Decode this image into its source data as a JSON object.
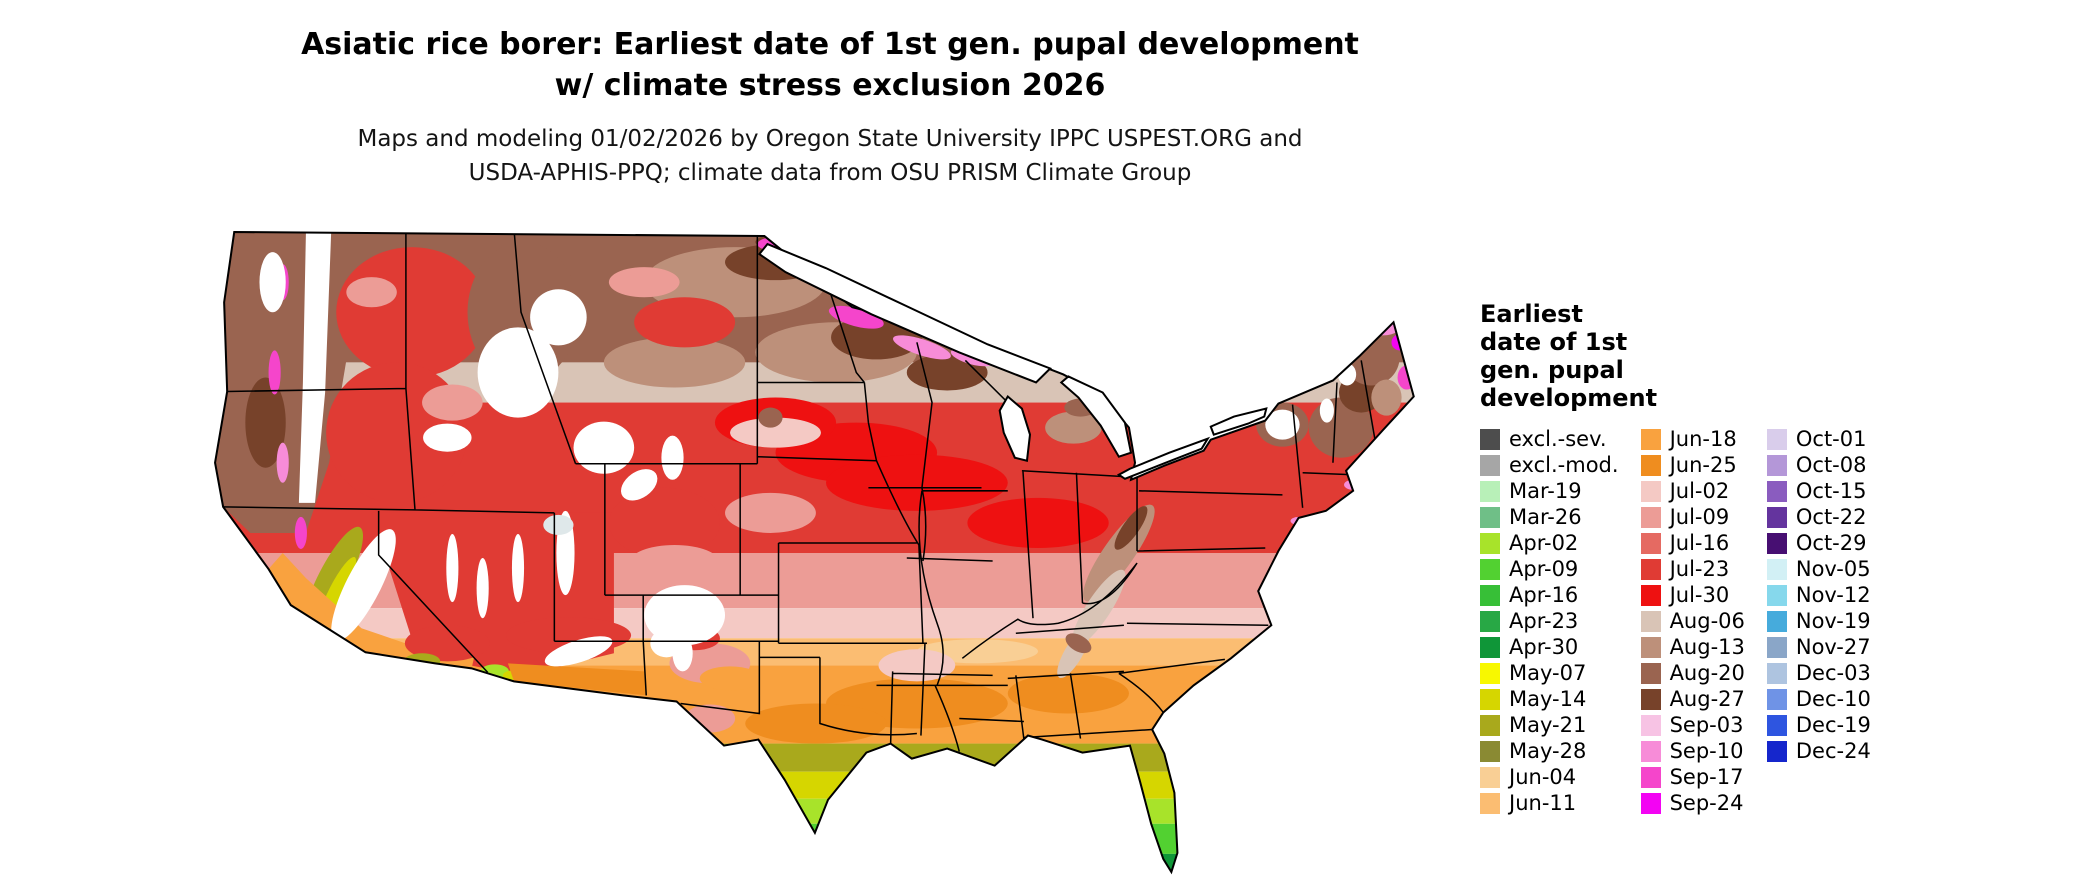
{
  "title": {
    "line1": "Asiatic rice borer: Earliest date of 1st gen. pupal development",
    "line2": "w/ climate stress exclusion 2026"
  },
  "subtitle": {
    "line1": "Maps and modeling 01/02/2026 by Oregon State University IPPC USPEST.ORG and",
    "line2": "USDA-APHIS-PPQ; climate data from OSU PRISM Climate Group"
  },
  "map": {
    "region": "Continental United States"
  },
  "legend": {
    "title_lines": [
      "Earliest",
      "date of 1st",
      "gen. pupal",
      "development"
    ],
    "columns": [
      {
        "items": [
          {
            "label": "excl.-sev.",
            "color": "#4d4d4d"
          },
          {
            "label": "excl.-mod.",
            "color": "#a6a6a6"
          },
          {
            "label": "Mar-19",
            "color": "#b8f0b8"
          },
          {
            "label": "Mar-26",
            "color": "#6fbf87"
          },
          {
            "label": "Apr-02",
            "color": "#a8e32a"
          },
          {
            "label": "Apr-09",
            "color": "#52d131"
          },
          {
            "label": "Apr-16",
            "color": "#37bf37"
          },
          {
            "label": "Apr-23",
            "color": "#28a845"
          },
          {
            "label": "Apr-30",
            "color": "#0f9638"
          },
          {
            "label": "May-07",
            "color": "#f8f800"
          },
          {
            "label": "May-14",
            "color": "#d6d600"
          },
          {
            "label": "May-21",
            "color": "#a9a91c"
          },
          {
            "label": "May-28",
            "color": "#8a8a33"
          },
          {
            "label": "Jun-04",
            "color": "#f9cf95"
          },
          {
            "label": "Jun-11",
            "color": "#fbbd72"
          }
        ]
      },
      {
        "items": [
          {
            "label": "Jun-18",
            "color": "#f9a23f"
          },
          {
            "label": "Jun-25",
            "color": "#ef8d1f"
          },
          {
            "label": "Jul-02",
            "color": "#f4c9c4"
          },
          {
            "label": "Jul-09",
            "color": "#ec9c96"
          },
          {
            "label": "Jul-16",
            "color": "#e56a62"
          },
          {
            "label": "Jul-23",
            "color": "#e03b34"
          },
          {
            "label": "Jul-30",
            "color": "#ee1111"
          },
          {
            "label": "Aug-06",
            "color": "#d9c4b6"
          },
          {
            "label": "Aug-13",
            "color": "#bd907a"
          },
          {
            "label": "Aug-20",
            "color": "#9a6450"
          },
          {
            "label": "Aug-27",
            "color": "#77422a"
          },
          {
            "label": "Sep-03",
            "color": "#f7c3e4"
          },
          {
            "label": "Sep-10",
            "color": "#f78cd8"
          },
          {
            "label": "Sep-17",
            "color": "#f545cb"
          },
          {
            "label": "Sep-24",
            "color": "#f303f3"
          }
        ]
      },
      {
        "items": [
          {
            "label": "Oct-01",
            "color": "#d9cdeb"
          },
          {
            "label": "Oct-08",
            "color": "#b497d8"
          },
          {
            "label": "Oct-15",
            "color": "#8a5cbf"
          },
          {
            "label": "Oct-22",
            "color": "#64349e"
          },
          {
            "label": "Oct-29",
            "color": "#470f72"
          },
          {
            "label": "Nov-05",
            "color": "#d2f0f5"
          },
          {
            "label": "Nov-12",
            "color": "#86d8ec"
          },
          {
            "label": "Nov-19",
            "color": "#46abdc"
          },
          {
            "label": "Nov-27",
            "color": "#8aa6c8"
          },
          {
            "label": "Dec-03",
            "color": "#aec4e0"
          },
          {
            "label": "Dec-10",
            "color": "#6f93e6"
          },
          {
            "label": "Dec-19",
            "color": "#2e55e0"
          },
          {
            "label": "Dec-24",
            "color": "#1526cc"
          }
        ]
      }
    ]
  }
}
